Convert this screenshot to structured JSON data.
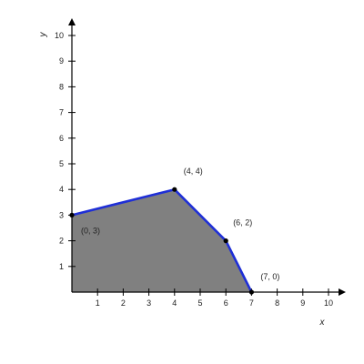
{
  "chart_data": {
    "type": "area",
    "title": "",
    "xlabel": "x",
    "ylabel": "y",
    "xlim": [
      0,
      10
    ],
    "ylim": [
      0,
      10
    ],
    "x_ticks": [
      1,
      2,
      3,
      4,
      5,
      6,
      7,
      8,
      9,
      10
    ],
    "y_ticks": [
      1,
      2,
      3,
      4,
      5,
      6,
      7,
      8,
      9,
      10
    ],
    "grid": false,
    "region_vertices": [
      [
        0,
        0
      ],
      [
        0,
        3
      ],
      [
        4,
        4
      ],
      [
        6,
        2
      ],
      [
        7,
        0
      ]
    ],
    "series": [
      {
        "points": [
          [
            0,
            3
          ],
          [
            4,
            4
          ],
          [
            6,
            2
          ],
          [
            7,
            0
          ]
        ],
        "color": "#1f2fd6"
      }
    ],
    "annotations": [
      {
        "text": "(0, 3)",
        "x": 0,
        "y": 3
      },
      {
        "text": "(4, 4)",
        "x": 4,
        "y": 4
      },
      {
        "text": "(6, 2)",
        "x": 6,
        "y": 2
      },
      {
        "text": "(7, 0)",
        "x": 7,
        "y": 0
      }
    ],
    "colors": {
      "region_fill": "#808080",
      "boundary": "#1f2fd6",
      "axis": "#000000",
      "point": "#000000"
    }
  }
}
